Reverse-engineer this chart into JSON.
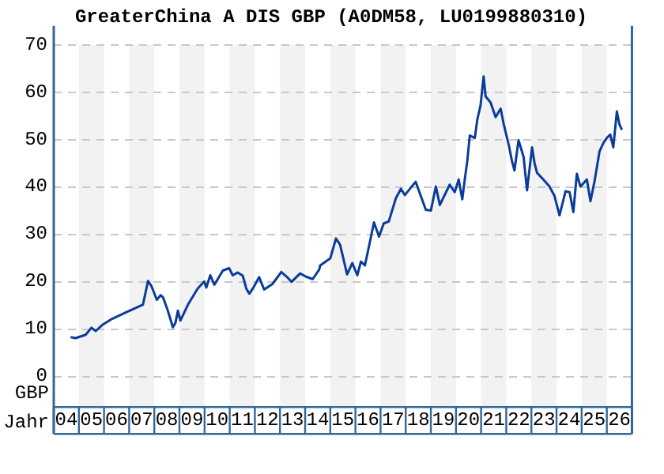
{
  "chart_data": {
    "type": "line",
    "title": "GreaterChina A DIS GBP (A0DM58, LU0199880310)",
    "ylabel": "GBP",
    "xlabel": "Jahr",
    "x": [
      "2004-09-02",
      "2004-11-14",
      "2005-04-08",
      "2005-07-01",
      "2005-09-02",
      "2005-12-16",
      "2006-04-04",
      "2006-11-10",
      "2007-07-19",
      "2007-10-01",
      "2007-11-21",
      "2008-02-07",
      "2008-04-01",
      "2008-05-07",
      "2008-07-15",
      "2008-09-27",
      "2008-11-03",
      "2008-12-09",
      "2009-01-15",
      "2009-05-03",
      "2009-09-23",
      "2009-12-27",
      "2010-01-26",
      "2010-03-23",
      "2010-05-21",
      "2010-09-23",
      "2010-12-23",
      "2011-02-14",
      "2011-04-26",
      "2011-07-08",
      "2011-08-28",
      "2011-10-11",
      "2011-12-02",
      "2012-03-02",
      "2012-05-14",
      "2012-09-16",
      "2013-01-19",
      "2013-04-08",
      "2013-06-16",
      "2013-10-19",
      "2014-01-15",
      "2014-04-19",
      "2014-07-22",
      "2014-08-07",
      "2015-01-01",
      "2015-03-23",
      "2015-05-21",
      "2015-09-02",
      "2015-11-17",
      "2016-01-29",
      "2016-03-20",
      "2016-05-17",
      "2016-07-15",
      "2016-09-27",
      "2016-12-09",
      "2017-02-17",
      "2017-04-29",
      "2017-08-10",
      "2017-10-22",
      "2017-12-20",
      "2018-03-16",
      "2018-05-25",
      "2018-08-07",
      "2018-10-19",
      "2019-01-01",
      "2019-03-13",
      "2019-05-10",
      "2019-10-01",
      "2019-12-13",
      "2020-02-10",
      "2020-04-01",
      "2020-05-07",
      "2020-06-13",
      "2020-07-19",
      "2020-10-01",
      "2020-11-07",
      "2020-12-23",
      "2021-02-07",
      "2021-03-05",
      "2021-05-17",
      "2021-07-29",
      "2021-10-11",
      "2021-11-25",
      "2022-02-07",
      "2022-03-23",
      "2022-04-29",
      "2022-06-27",
      "2022-09-09",
      "2022-10-29",
      "2023-01-11",
      "2023-02-17",
      "2023-03-23",
      "2023-06-02",
      "2023-09-20",
      "2023-12-02",
      "2024-02-14",
      "2024-05-10",
      "2024-07-08",
      "2024-09-02",
      "2024-10-22",
      "2024-12-13",
      "2025-03-16",
      "2025-05-07",
      "2025-07-04",
      "2025-09-16",
      "2025-11-14",
      "2026-01-01",
      "2026-02-21",
      "2026-04-04",
      "2026-05-25",
      "2026-07-01",
      "2026-08-07"
    ],
    "series": [
      {
        "color": "#0a3c9b",
        "values": [
          8.1,
          7.9,
          8.6,
          10.1,
          9.4,
          10.8,
          11.8,
          13.3,
          15,
          20,
          18.9,
          16,
          17,
          16.5,
          13.7,
          10.2,
          11.1,
          13.7,
          11.6,
          15,
          18.4,
          19.9,
          18.6,
          21.2,
          19.2,
          22.2,
          22.7,
          21.2,
          21.8,
          21.1,
          18.4,
          17.3,
          18.4,
          20.8,
          18.2,
          19.4,
          21.9,
          20.9,
          19.8,
          21.6,
          20.9,
          20.4,
          22.4,
          23.3,
          24.8,
          29,
          27.7,
          21.4,
          23.8,
          21.2,
          24.1,
          23.3,
          27.3,
          32.4,
          29.4,
          32.2,
          32.6,
          37.5,
          39.5,
          38.2,
          39.8,
          41,
          38,
          35.1,
          34.9,
          40,
          36.1,
          40.4,
          38.8,
          41.5,
          37.3,
          41.5,
          45.4,
          50.8,
          50.3,
          54.2,
          57.2,
          63.3,
          59.1,
          57.8,
          54.7,
          56.5,
          53.2,
          48.8,
          45.4,
          43.4,
          49.8,
          46.3,
          39.2,
          48.3,
          44.9,
          42.9,
          41.8,
          40,
          38,
          33.9,
          39,
          38.8,
          34.6,
          42.7,
          40,
          41.5,
          36.9,
          41,
          47.4,
          49.3,
          50.3,
          51,
          48.3,
          55.9,
          53.2,
          52
        ]
      }
    ],
    "xlim": [
      "2004-01-01",
      "2027-01-01"
    ],
    "xticks": [
      {
        "value": "2004-07-01",
        "label": "04"
      },
      {
        "value": "2005-07-01",
        "label": "05"
      },
      {
        "value": "2006-07-01",
        "label": "06"
      },
      {
        "value": "2007-07-01",
        "label": "07"
      },
      {
        "value": "2008-07-01",
        "label": "08"
      },
      {
        "value": "2009-07-01",
        "label": "09"
      },
      {
        "value": "2010-07-01",
        "label": "10"
      },
      {
        "value": "2011-07-01",
        "label": "11"
      },
      {
        "value": "2012-07-01",
        "label": "12"
      },
      {
        "value": "2013-07-01",
        "label": "13"
      },
      {
        "value": "2014-07-01",
        "label": "14"
      },
      {
        "value": "2015-07-01",
        "label": "15"
      },
      {
        "value": "2016-07-01",
        "label": "16"
      },
      {
        "value": "2017-07-01",
        "label": "17"
      },
      {
        "value": "2018-07-01",
        "label": "18"
      },
      {
        "value": "2019-07-01",
        "label": "19"
      },
      {
        "value": "2020-07-01",
        "label": "20"
      },
      {
        "value": "2021-07-01",
        "label": "21"
      },
      {
        "value": "2022-07-01",
        "label": "22"
      },
      {
        "value": "2023-07-01",
        "label": "23"
      },
      {
        "value": "2024-07-01",
        "label": "24"
      },
      {
        "value": "2025-07-01",
        "label": "25"
      },
      {
        "value": "2026-07-01",
        "label": "26"
      }
    ],
    "ylim": [
      0,
      70
    ],
    "yticks": [
      0,
      10,
      20,
      30,
      40,
      50,
      60,
      70
    ],
    "bands": [
      {
        "axis": "x",
        "from": "2005-01-01",
        "to": "2006-01-01",
        "color": "#f2f2f2"
      },
      {
        "axis": "x",
        "from": "2007-01-01",
        "to": "2008-01-01",
        "color": "#f2f2f2"
      },
      {
        "axis": "x",
        "from": "2009-01-01",
        "to": "2010-01-01",
        "color": "#f2f2f2"
      },
      {
        "axis": "x",
        "from": "2011-01-01",
        "to": "2012-01-01",
        "color": "#f2f2f2"
      },
      {
        "axis": "x",
        "from": "2013-01-01",
        "to": "2014-01-01",
        "color": "#f2f2f2"
      },
      {
        "axis": "x",
        "from": "2015-01-01",
        "to": "2016-01-01",
        "color": "#f2f2f2"
      },
      {
        "axis": "x",
        "from": "2017-01-01",
        "to": "2018-01-01",
        "color": "#f2f2f2"
      },
      {
        "axis": "x",
        "from": "2019-01-01",
        "to": "2020-01-01",
        "color": "#f2f2f2"
      },
      {
        "axis": "x",
        "from": "2021-01-01",
        "to": "2022-01-01",
        "color": "#f2f2f2"
      },
      {
        "axis": "x",
        "from": "2023-01-01",
        "to": "2024-01-01",
        "color": "#f2f2f2"
      },
      {
        "axis": "x",
        "from": "2025-01-01",
        "to": "2026-01-01",
        "color": "#f2f2f2"
      }
    ],
    "grid": "y",
    "line_style": "solid",
    "marker": "none",
    "legend": false
  }
}
